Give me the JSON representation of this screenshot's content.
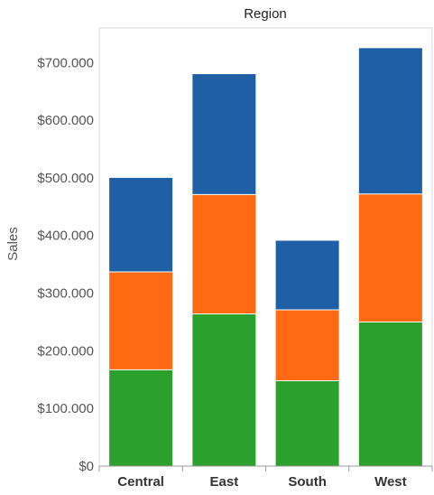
{
  "chart_data": {
    "type": "bar",
    "stacked": true,
    "title": "Region",
    "xlabel": "",
    "ylabel": "Sales",
    "categories": [
      "Central",
      "East",
      "South",
      "West"
    ],
    "ylim": [
      0,
      760000
    ],
    "yticks": [
      {
        "value": 0,
        "label": "$0"
      },
      {
        "value": 100000,
        "label": "$100.000"
      },
      {
        "value": 200000,
        "label": "$200.000"
      },
      {
        "value": 300000,
        "label": "$300.000"
      },
      {
        "value": 400000,
        "label": "$400.000"
      },
      {
        "value": 500000,
        "label": "$500.000"
      },
      {
        "value": 600000,
        "label": "$600.000"
      },
      {
        "value": 700000,
        "label": "$700.000"
      }
    ],
    "grid": false,
    "legend": "none",
    "series": [
      {
        "color": "#2ca02c",
        "values": [
          167000,
          264000,
          148000,
          250000
        ]
      },
      {
        "color": "#ff6a13",
        "values": [
          170000,
          207000,
          123000,
          222000
        ]
      },
      {
        "color": "#1f5fa6",
        "values": [
          163000,
          209000,
          120000,
          253000
        ]
      }
    ]
  }
}
